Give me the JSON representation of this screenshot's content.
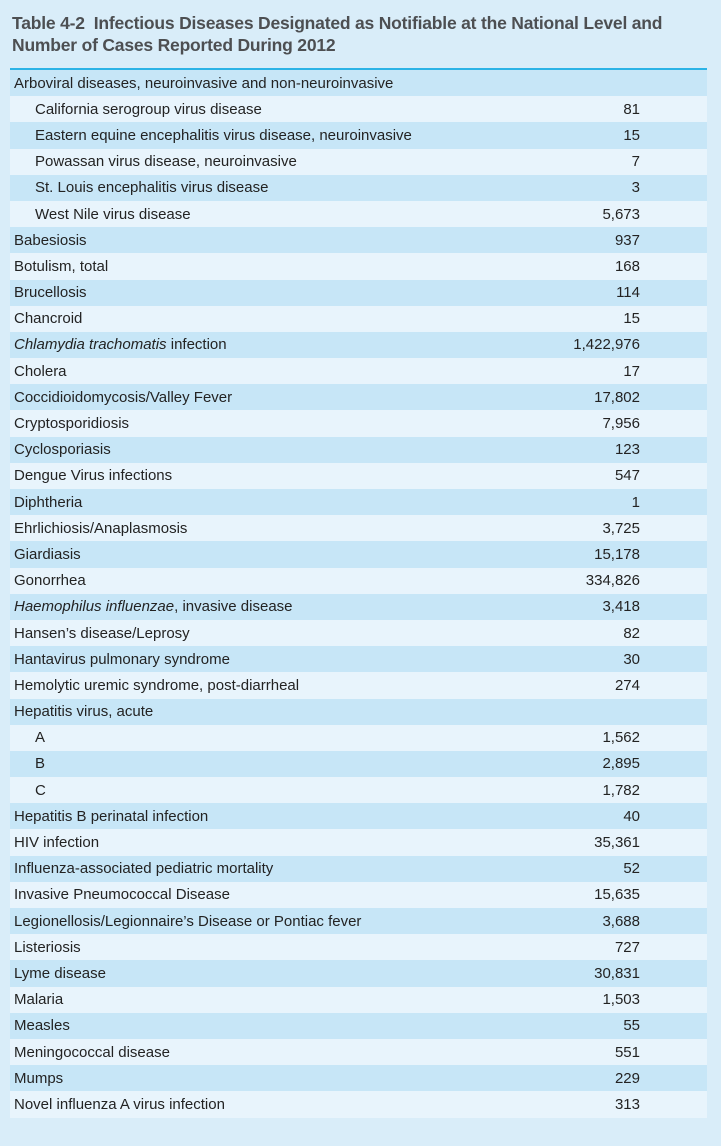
{
  "title": {
    "label": "Table 4-2",
    "caption": "Infectious Diseases Designated as Notifiable at the National Level and Number of Cases Reported During 2012"
  },
  "colors": {
    "page_background": "#d9edf9",
    "row_dark": "#c7e6f7",
    "row_light": "#e8f4fc",
    "divider": "#2cb3e6",
    "title_text": "#4d4f52",
    "body_text": "#232323"
  },
  "table": {
    "rows": [
      {
        "text": "Arboviral diseases, neuroinvasive and non-neuroinvasive",
        "value": "",
        "indent": 0
      },
      {
        "text": "California serogroup virus disease",
        "value": "81",
        "indent": 1
      },
      {
        "text": "Eastern equine encephalitis virus disease, neuroinvasive",
        "value": "15",
        "indent": 1
      },
      {
        "text": "Powassan virus disease, neuroinvasive",
        "value": "7",
        "indent": 1
      },
      {
        "text": "St. Louis encephalitis virus disease",
        "value": "3",
        "indent": 1
      },
      {
        "text": "West Nile virus disease",
        "value": "5,673",
        "indent": 1
      },
      {
        "text": "Babesiosis",
        "value": "937",
        "indent": 0
      },
      {
        "text": "Botulism, total",
        "value": "168",
        "indent": 0
      },
      {
        "text": "Brucellosis",
        "value": "114",
        "indent": 0
      },
      {
        "text": "Chancroid",
        "value": "15",
        "indent": 0
      },
      {
        "italic_text": "Chlamydia trachomatis",
        "text": " infection",
        "value": "1,422,976",
        "indent": 0
      },
      {
        "text": "Cholera",
        "value": "17",
        "indent": 0
      },
      {
        "text": "Coccidioidomycosis/Valley Fever",
        "value": "17,802",
        "indent": 0
      },
      {
        "text": "Cryptosporidiosis",
        "value": "7,956",
        "indent": 0
      },
      {
        "text": "Cyclosporiasis",
        "value": "123",
        "indent": 0
      },
      {
        "text": "Dengue Virus infections",
        "value": "547",
        "indent": 0
      },
      {
        "text": "Diphtheria",
        "value": "1",
        "indent": 0
      },
      {
        "text": "Ehrlichiosis/Anaplasmosis",
        "value": "3,725",
        "indent": 0
      },
      {
        "text": "Giardiasis",
        "value": "15,178",
        "indent": 0
      },
      {
        "text": "Gonorrhea",
        "value": "334,826",
        "indent": 0
      },
      {
        "italic_text": "Haemophilus influenzae",
        "text": ", invasive disease",
        "value": "3,418",
        "indent": 0
      },
      {
        "text": "Hansen’s disease/Leprosy",
        "value": "82",
        "indent": 0
      },
      {
        "text": "Hantavirus pulmonary syndrome",
        "value": "30",
        "indent": 0
      },
      {
        "text": "Hemolytic uremic syndrome, post-diarrheal",
        "value": "274",
        "indent": 0
      },
      {
        "text": "Hepatitis virus, acute",
        "value": "",
        "indent": 0
      },
      {
        "text": "A",
        "value": "1,562",
        "indent": 1
      },
      {
        "text": "B",
        "value": "2,895",
        "indent": 1
      },
      {
        "text": "C",
        "value": "1,782",
        "indent": 1
      },
      {
        "text": "Hepatitis B perinatal infection",
        "value": "40",
        "indent": 0
      },
      {
        "text": "HIV infection",
        "value": "35,361",
        "indent": 0
      },
      {
        "text": "Influenza-associated pediatric mortality",
        "value": "52",
        "indent": 0
      },
      {
        "text": "Invasive Pneumococcal Disease",
        "value": "15,635",
        "indent": 0
      },
      {
        "text": "Legionellosis/Legionnaire’s Disease or Pontiac fever",
        "value": "3,688",
        "indent": 0
      },
      {
        "text": "Listeriosis",
        "value": "727",
        "indent": 0
      },
      {
        "text": "Lyme disease",
        "value": "30,831",
        "indent": 0
      },
      {
        "text": "Malaria",
        "value": "1,503",
        "indent": 0
      },
      {
        "text": "Measles",
        "value": "55",
        "indent": 0
      },
      {
        "text": "Meningococcal disease",
        "value": "551",
        "indent": 0
      },
      {
        "text": "Mumps",
        "value": "229",
        "indent": 0
      },
      {
        "text": "Novel influenza A virus infection",
        "value": "313",
        "indent": 0
      }
    ]
  }
}
